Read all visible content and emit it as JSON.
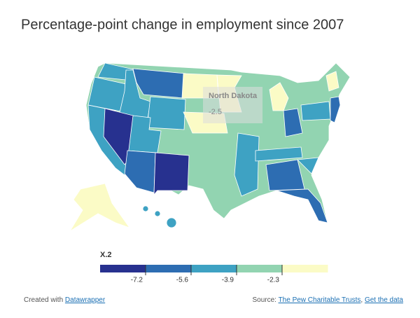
{
  "title": "Percentage-point change in employment since 2007",
  "tooltip": {
    "state": "North Dakota",
    "value": -2.5
  },
  "legend": {
    "title": "X.2",
    "ticks": [
      -7.2,
      -5.6,
      -3.9,
      -2.3
    ],
    "colors": [
      "#27318f",
      "#2d6db2",
      "#3ea2c3",
      "#92d4b1",
      "#fbfbc6"
    ]
  },
  "footer": {
    "credit": "Created with",
    "credit_link": "Datawrapper",
    "source": "Source:",
    "source_link": "The Pew Charitable Trusts",
    "separator": ",",
    "data_link": "Get the data"
  }
}
